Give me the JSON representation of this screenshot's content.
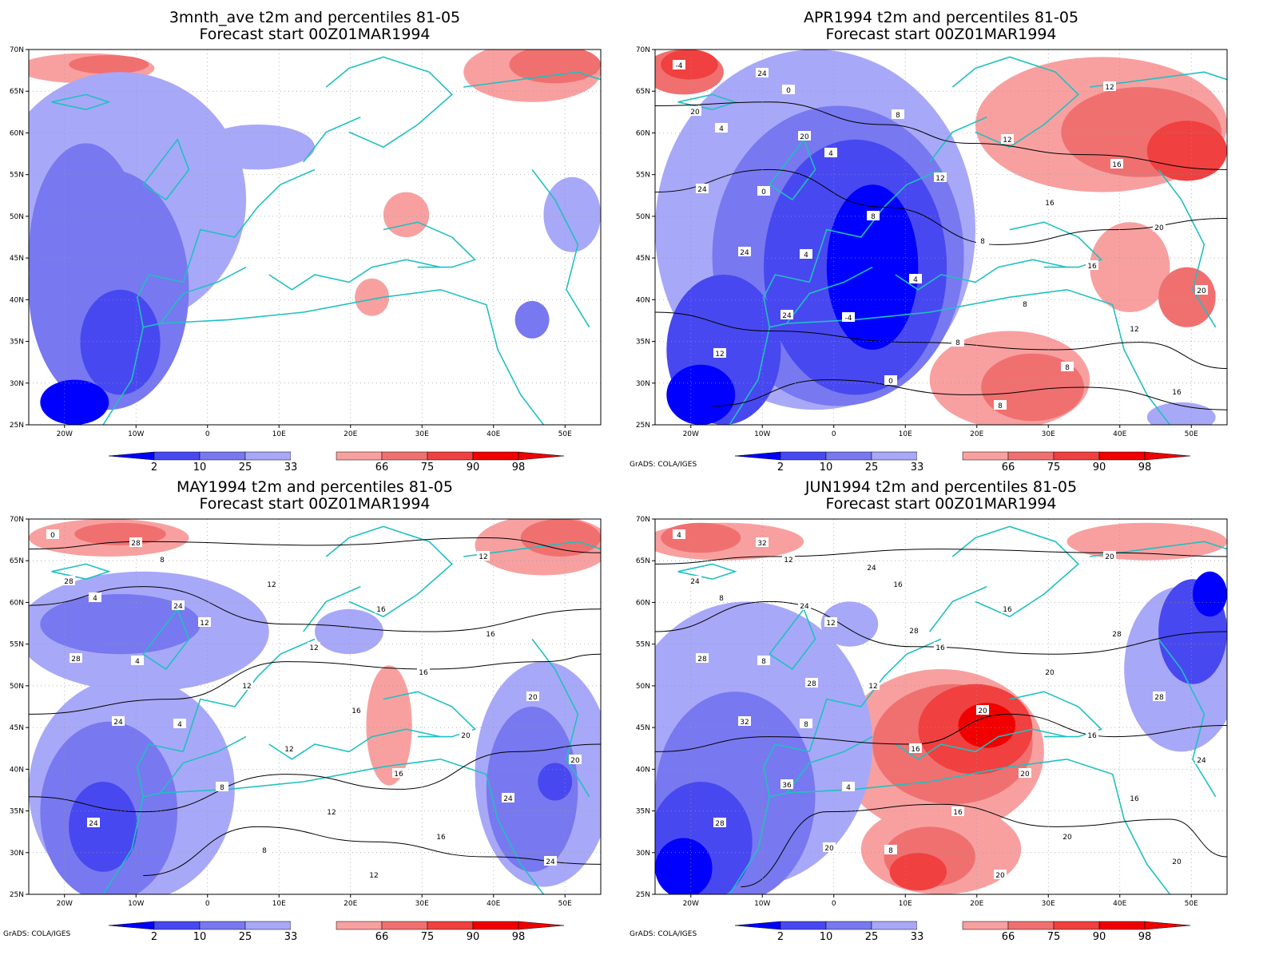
{
  "colors": {
    "p2": "#0000ff",
    "p10": "#4848f0",
    "p25": "#7878f0",
    "p33": "#a8a8f8",
    "p66": "#f8a0a0",
    "p75": "#f07070",
    "p90": "#f04040",
    "p98": "#f00000",
    "coast": "#20c0c0",
    "contour": "#000000",
    "grid": "#999999"
  },
  "axes": {
    "lat_labels": [
      "70N",
      "65N",
      "60N",
      "55N",
      "50N",
      "45N",
      "40N",
      "35N",
      "30N",
      "25N"
    ],
    "lon_labels": [
      "20W",
      "10W",
      "0",
      "10E",
      "20E",
      "30E",
      "40E",
      "50E"
    ]
  },
  "colorbar": {
    "labels": [
      "2",
      "10",
      "25",
      "33",
      "66",
      "75",
      "90",
      "98"
    ]
  },
  "credit": "GrADS: COLA/IGES",
  "panels": [
    {
      "id": "3mnth",
      "title_line1": "3mnth_ave t2m and percentiles 81-05",
      "title_line2": "Forecast start 00Z01MAR1994",
      "show_credit": false,
      "contour_labels": []
    },
    {
      "id": "apr",
      "title_line1": "APR1994 t2m and percentiles 81-05",
      "title_line2": "Forecast start 00Z01MAR1994",
      "show_credit": true,
      "contour_labels": [
        "-4",
        "4",
        "0",
        "4",
        "-4",
        "0",
        "0",
        "4",
        "8",
        "4",
        "8",
        "8",
        "8",
        "12",
        "8",
        "8",
        "8",
        "12",
        "12",
        "16",
        "16",
        "12",
        "16",
        "20",
        "16",
        "20",
        "20",
        "12",
        "24",
        "20",
        "24",
        "24",
        "24"
      ]
    },
    {
      "id": "may",
      "title_line1": "MAY1994 t2m and percentiles 81-05",
      "title_line2": "Forecast start 00Z01MAR1994",
      "show_credit": true,
      "contour_labels": [
        "0",
        "4",
        "4",
        "4",
        "8",
        "8",
        "8",
        "12",
        "12",
        "12",
        "12",
        "12",
        "12",
        "12",
        "16",
        "16",
        "16",
        "12",
        "16",
        "16",
        "20",
        "24",
        "24",
        "28",
        "16",
        "20",
        "20",
        "24",
        "28",
        "24",
        "28",
        "24"
      ]
    },
    {
      "id": "jun",
      "title_line1": "JUN1994 t2m and percentiles 81-05",
      "title_line2": "Forecast start 00Z01MAR1994",
      "show_credit": true,
      "contour_labels": [
        "4",
        "8",
        "8",
        "8",
        "4",
        "8",
        "12",
        "12",
        "12",
        "16",
        "16",
        "20",
        "16",
        "16",
        "20",
        "20",
        "20",
        "20",
        "16",
        "20",
        "16",
        "16",
        "20",
        "24",
        "28",
        "28",
        "24",
        "28",
        "32",
        "24",
        "28",
        "32",
        "36",
        "20",
        "24",
        "28",
        "28"
      ]
    }
  ]
}
